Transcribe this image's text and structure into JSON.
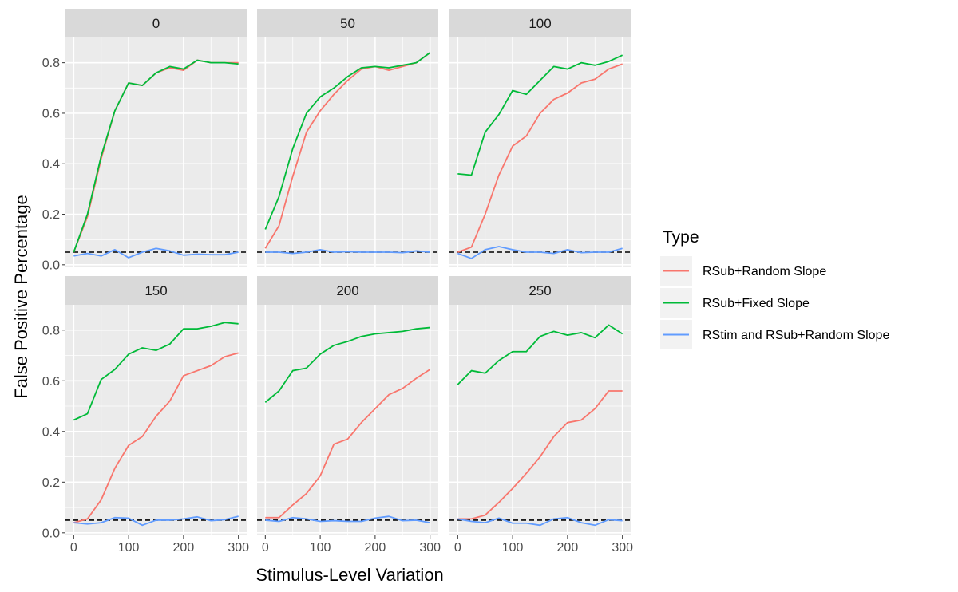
{
  "chart_data": {
    "type": "line",
    "facet_label_title": "",
    "xlabel": "Stimulus-Level Variation",
    "ylabel": "False Positive Percentage",
    "xlim": [
      -15,
      315
    ],
    "ylim": [
      -0.01,
      0.9
    ],
    "x_ticks": [
      0,
      100,
      200,
      300
    ],
    "y_ticks": [
      0.0,
      0.2,
      0.4,
      0.6,
      0.8
    ],
    "x_tick_labels": [
      "0",
      "100",
      "200",
      "300"
    ],
    "y_tick_labels": [
      "0.0",
      "0.2",
      "0.4",
      "0.6",
      "0.8"
    ],
    "reference_line": {
      "y": 0.05,
      "style": "dashed",
      "color": "#000000"
    },
    "grid": true,
    "background_color": "#ebebeb",
    "strip_color": "#d9d9d9",
    "legend": {
      "title": "Type",
      "placement": "right",
      "entries": [
        {
          "label": "RSub+Random Slope",
          "color": "#F8766D"
        },
        {
          "label": "RSub+Fixed Slope",
          "color": "#00BA38"
        },
        {
          "label": "RStim and RSub+Random Slope",
          "color": "#619CFF"
        }
      ]
    },
    "x": [
      0,
      25,
      50,
      75,
      100,
      125,
      150,
      175,
      200,
      225,
      250,
      275,
      300
    ],
    "facets": [
      {
        "label": "0",
        "series": [
          {
            "name": "RSub+Random Slope",
            "values": [
              0.05,
              0.19,
              0.42,
              0.61,
              0.72,
              0.71,
              0.76,
              0.78,
              0.77,
              0.81,
              0.8,
              0.8,
              0.8
            ]
          },
          {
            "name": "RSub+Fixed Slope",
            "values": [
              0.05,
              0.2,
              0.43,
              0.61,
              0.72,
              0.71,
              0.76,
              0.785,
              0.775,
              0.81,
              0.8,
              0.8,
              0.795
            ]
          },
          {
            "name": "RStim and RSub+Random Slope",
            "values": [
              0.035,
              0.045,
              0.035,
              0.06,
              0.028,
              0.05,
              0.065,
              0.055,
              0.038,
              0.042,
              0.04,
              0.04,
              0.05
            ]
          }
        ]
      },
      {
        "label": "50",
        "series": [
          {
            "name": "RSub+Random Slope",
            "values": [
              0.065,
              0.155,
              0.35,
              0.525,
              0.61,
              0.675,
              0.73,
              0.775,
              0.785,
              0.77,
              0.785,
              0.8,
              0.84
            ]
          },
          {
            "name": "RSub+Fixed Slope",
            "values": [
              0.14,
              0.27,
              0.46,
              0.6,
              0.665,
              0.7,
              0.745,
              0.78,
              0.785,
              0.78,
              0.79,
              0.8,
              0.84
            ]
          },
          {
            "name": "RStim and RSub+Random Slope",
            "values": [
              0.05,
              0.05,
              0.045,
              0.05,
              0.06,
              0.05,
              0.052,
              0.05,
              0.05,
              0.05,
              0.048,
              0.055,
              0.05
            ]
          }
        ]
      },
      {
        "label": "100",
        "series": [
          {
            "name": "RSub+Random Slope",
            "values": [
              0.05,
              0.07,
              0.2,
              0.355,
              0.47,
              0.51,
              0.6,
              0.655,
              0.68,
              0.72,
              0.735,
              0.775,
              0.795
            ]
          },
          {
            "name": "RSub+Fixed Slope",
            "values": [
              0.36,
              0.355,
              0.525,
              0.595,
              0.69,
              0.675,
              0.73,
              0.785,
              0.775,
              0.8,
              0.79,
              0.805,
              0.83
            ]
          },
          {
            "name": "RStim and RSub+Random Slope",
            "values": [
              0.045,
              0.025,
              0.06,
              0.072,
              0.06,
              0.05,
              0.05,
              0.045,
              0.06,
              0.048,
              0.05,
              0.05,
              0.065
            ]
          }
        ]
      },
      {
        "label": "150",
        "series": [
          {
            "name": "RSub+Random Slope",
            "values": [
              0.04,
              0.055,
              0.13,
              0.255,
              0.345,
              0.38,
              0.46,
              0.52,
              0.62,
              0.64,
              0.66,
              0.695,
              0.71
            ]
          },
          {
            "name": "RSub+Fixed Slope",
            "values": [
              0.445,
              0.47,
              0.605,
              0.645,
              0.705,
              0.73,
              0.72,
              0.745,
              0.805,
              0.805,
              0.815,
              0.83,
              0.825
            ]
          },
          {
            "name": "RStim and RSub+Random Slope",
            "values": [
              0.04,
              0.035,
              0.04,
              0.06,
              0.058,
              0.03,
              0.05,
              0.05,
              0.055,
              0.063,
              0.048,
              0.052,
              0.065
            ]
          }
        ]
      },
      {
        "label": "200",
        "series": [
          {
            "name": "RSub+Random Slope",
            "values": [
              0.06,
              0.06,
              0.11,
              0.155,
              0.225,
              0.35,
              0.37,
              0.435,
              0.49,
              0.545,
              0.57,
              0.61,
              0.645
            ]
          },
          {
            "name": "RSub+Fixed Slope",
            "values": [
              0.515,
              0.56,
              0.64,
              0.65,
              0.705,
              0.74,
              0.755,
              0.775,
              0.785,
              0.79,
              0.795,
              0.805,
              0.81
            ]
          },
          {
            "name": "RStim and RSub+Random Slope",
            "values": [
              0.05,
              0.045,
              0.06,
              0.055,
              0.045,
              0.048,
              0.045,
              0.045,
              0.058,
              0.065,
              0.048,
              0.05,
              0.04
            ]
          }
        ]
      },
      {
        "label": "250",
        "series": [
          {
            "name": "RSub+Random Slope",
            "values": [
              0.055,
              0.055,
              0.07,
              0.12,
              0.175,
              0.235,
              0.3,
              0.38,
              0.435,
              0.445,
              0.49,
              0.56,
              0.56
            ]
          },
          {
            "name": "RSub+Fixed Slope",
            "values": [
              0.585,
              0.64,
              0.63,
              0.68,
              0.715,
              0.715,
              0.775,
              0.795,
              0.78,
              0.79,
              0.77,
              0.82,
              0.785
            ]
          },
          {
            "name": "RStim and RSub+Random Slope",
            "values": [
              0.055,
              0.045,
              0.04,
              0.058,
              0.038,
              0.038,
              0.03,
              0.055,
              0.06,
              0.04,
              0.03,
              0.052,
              0.048
            ]
          }
        ]
      }
    ]
  }
}
